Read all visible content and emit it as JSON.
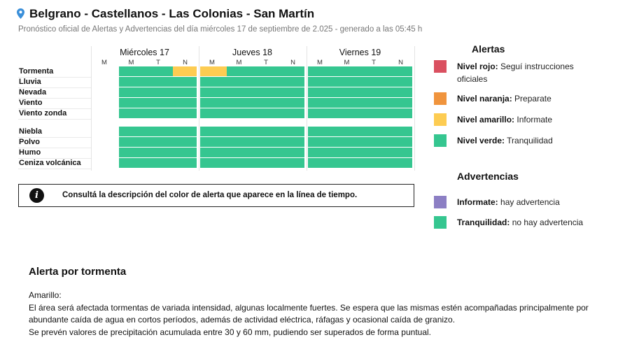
{
  "header": {
    "title": "Belgrano - Castellanos - Las Colonias - San Martín",
    "subtitle": "Pronóstico oficial de Alertas y Advertencias del día miércoles 17 de septiembre de 2.025 - generado a las 05:45 h",
    "icon": "map-pin-icon"
  },
  "colors": {
    "green": "#35c690",
    "yellow": "#fdcc52",
    "orange": "#f0943d",
    "red": "#da5060",
    "purple": "#8c7fc4"
  },
  "timeline": {
    "days": [
      {
        "label": "Miércoles 17",
        "periods": [
          "M",
          "M",
          "T",
          "N"
        ]
      },
      {
        "label": "Jueves 18",
        "periods": [
          "M",
          "M",
          "T",
          "N"
        ]
      },
      {
        "label": "Viernes 19",
        "periods": [
          "M",
          "M",
          "T",
          "N"
        ]
      }
    ],
    "groups": [
      [
        {
          "label": "Tormenta",
          "values": [
            null,
            "green",
            "green",
            "yellow",
            "yellow",
            "green",
            "green",
            "green",
            "green",
            "green",
            "green",
            "green"
          ]
        },
        {
          "label": "Lluvia",
          "values": [
            null,
            "green",
            "green",
            "green",
            "green",
            "green",
            "green",
            "green",
            "green",
            "green",
            "green",
            "green"
          ]
        },
        {
          "label": "Nevada",
          "values": [
            null,
            "green",
            "green",
            "green",
            "green",
            "green",
            "green",
            "green",
            "green",
            "green",
            "green",
            "green"
          ]
        },
        {
          "label": "Viento",
          "values": [
            null,
            "green",
            "green",
            "green",
            "green",
            "green",
            "green",
            "green",
            "green",
            "green",
            "green",
            "green"
          ]
        },
        {
          "label": "Viento zonda",
          "values": [
            null,
            "green",
            "green",
            "green",
            "green",
            "green",
            "green",
            "green",
            "green",
            "green",
            "green",
            "green"
          ]
        }
      ],
      [
        {
          "label": "Niebla",
          "values": [
            null,
            "green",
            "green",
            "green",
            "green",
            "green",
            "green",
            "green",
            "green",
            "green",
            "green",
            "green"
          ]
        },
        {
          "label": "Polvo",
          "values": [
            null,
            "green",
            "green",
            "green",
            "green",
            "green",
            "green",
            "green",
            "green",
            "green",
            "green",
            "green"
          ]
        },
        {
          "label": "Humo",
          "values": [
            null,
            "green",
            "green",
            "green",
            "green",
            "green",
            "green",
            "green",
            "green",
            "green",
            "green",
            "green"
          ]
        },
        {
          "label": "Ceniza volcánica",
          "values": [
            null,
            "green",
            "green",
            "green",
            "green",
            "green",
            "green",
            "green",
            "green",
            "green",
            "green",
            "green"
          ]
        }
      ]
    ]
  },
  "info": {
    "icon": "info-icon",
    "icon_glyph": "i",
    "text": "Consultá la descripción del color de alerta que aparece en la línea de tiempo."
  },
  "legend": {
    "alertas_title": "Alertas",
    "alertas": [
      {
        "color": "red",
        "label": "Nivel rojo:",
        "desc": "Seguí instrucciones oficiales"
      },
      {
        "color": "orange",
        "label": "Nivel naranja:",
        "desc": "Preparate"
      },
      {
        "color": "yellow",
        "label": "Nivel amarillo:",
        "desc": "Informate"
      },
      {
        "color": "green",
        "label": "Nivel verde:",
        "desc": "Tranquilidad"
      }
    ],
    "advertencias_title": "Advertencias",
    "advertencias": [
      {
        "color": "purple",
        "label": "Informate:",
        "desc": "hay advertencia"
      },
      {
        "color": "green",
        "label": "Tranquilidad:",
        "desc": "no hay advertencia"
      }
    ]
  },
  "detail": {
    "title": "Alerta por tormenta",
    "level": "Amarillo:",
    "lines": [
      "El área será afectada tormentas de variada intensidad, algunas localmente fuertes. Se espera que las mismas estén acompañadas principalmente por abundante caída de agua en cortos períodos, además de actividad eléctrica, ráfagas y ocasional caída de granizo.",
      "Se prevén valores de precipitación acumulada entre 30 y 60 mm, pudiendo ser superados de forma puntual."
    ]
  }
}
